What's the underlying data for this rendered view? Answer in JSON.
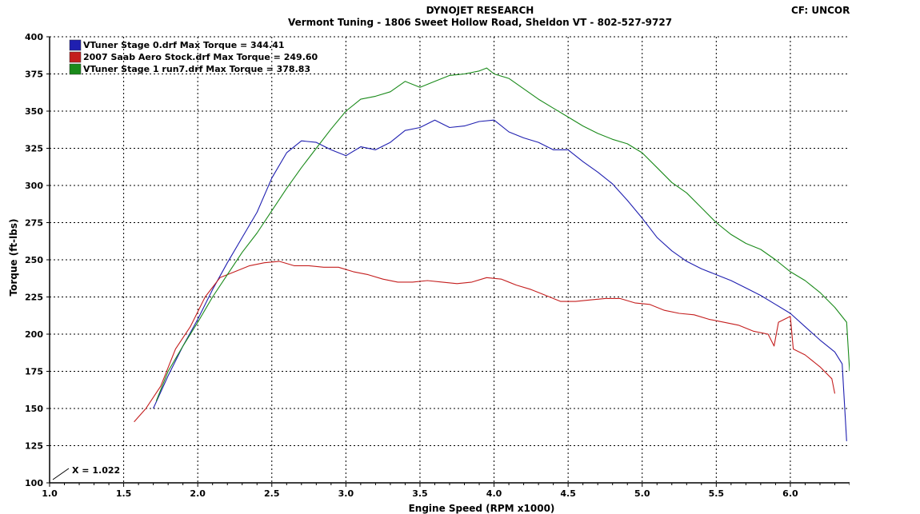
{
  "header": {
    "title": "DYNOJET RESEARCH",
    "subtitle": "Vermont Tuning - 1806 Sweet Hollow Road, Sheldon VT - 802-527-9727",
    "correction": "CF: UNCORR"
  },
  "cursor_readout": "X = 1.022",
  "chart_data": {
    "type": "line",
    "title": "DYNOJET RESEARCH",
    "xlabel": "Engine Speed (RPM x1000)",
    "ylabel": "Torque (ft-lbs)",
    "xlim": [
      1.0,
      6.4
    ],
    "ylim": [
      100,
      400
    ],
    "x_ticks": [
      "1.0",
      "1.5",
      "2.0",
      "2.5",
      "3.0",
      "3.5",
      "4.0",
      "4.5",
      "5.0",
      "5.5",
      "6.0"
    ],
    "y_ticks": [
      "100",
      "125",
      "150",
      "175",
      "200",
      "225",
      "250",
      "275",
      "300",
      "325",
      "350",
      "375",
      "400"
    ],
    "grid": true,
    "legend_position": "top-left",
    "series": [
      {
        "name": "VTuner Stage 0.drf Max Torque = 344.41",
        "color": "#1f1fb0",
        "x": [
          1.7,
          1.8,
          1.9,
          2.0,
          2.1,
          2.2,
          2.3,
          2.4,
          2.5,
          2.6,
          2.7,
          2.8,
          2.9,
          3.0,
          3.1,
          3.2,
          3.3,
          3.4,
          3.5,
          3.6,
          3.7,
          3.8,
          3.9,
          4.0,
          4.1,
          4.2,
          4.3,
          4.4,
          4.5,
          4.6,
          4.7,
          4.8,
          4.9,
          5.0,
          5.1,
          5.2,
          5.3,
          5.4,
          5.5,
          5.6,
          5.7,
          5.8,
          5.9,
          6.0,
          6.1,
          6.2,
          6.3,
          6.35,
          6.38
        ],
        "y": [
          150,
          172,
          192,
          210,
          230,
          248,
          265,
          282,
          305,
          322,
          330,
          329,
          324,
          320,
          326,
          324,
          329,
          337,
          339,
          344,
          339,
          340,
          343,
          344,
          336,
          332,
          329,
          324,
          324,
          316,
          309,
          301,
          290,
          278,
          265,
          256,
          249,
          244,
          240,
          236,
          231,
          226,
          220,
          214,
          205,
          196,
          188,
          180,
          128
        ]
      },
      {
        "name": "2007 Saab Aero Stock.drf Max Torque = 249.60",
        "color": "#c41e1e",
        "x": [
          1.57,
          1.65,
          1.75,
          1.85,
          1.95,
          2.05,
          2.15,
          2.25,
          2.35,
          2.45,
          2.55,
          2.65,
          2.75,
          2.85,
          2.95,
          3.05,
          3.15,
          3.25,
          3.35,
          3.45,
          3.55,
          3.65,
          3.75,
          3.85,
          3.95,
          4.05,
          4.15,
          4.25,
          4.35,
          4.45,
          4.55,
          4.65,
          4.75,
          4.85,
          4.95,
          5.05,
          5.15,
          5.25,
          5.35,
          5.45,
          5.55,
          5.65,
          5.75,
          5.85,
          5.89,
          5.92,
          6.0,
          6.02,
          6.1,
          6.2,
          6.28,
          6.3
        ],
        "y": [
          141,
          150,
          165,
          190,
          205,
          225,
          238,
          242,
          246,
          248,
          249,
          246,
          246,
          245,
          245,
          242,
          240,
          237,
          235,
          235,
          236,
          235,
          234,
          235,
          238,
          237,
          233,
          230,
          226,
          222,
          222,
          223,
          224,
          224,
          221,
          220,
          216,
          214,
          213,
          210,
          208,
          206,
          202,
          200,
          192,
          208,
          212,
          190,
          186,
          178,
          170,
          160
        ]
      },
      {
        "name": "VTuner Stage 1 run7.drf Max Torque = 378.83",
        "color": "#1a8a1a",
        "x": [
          1.72,
          1.8,
          1.9,
          2.0,
          2.1,
          2.2,
          2.3,
          2.4,
          2.5,
          2.6,
          2.7,
          2.8,
          2.9,
          3.0,
          3.1,
          3.2,
          3.3,
          3.4,
          3.5,
          3.6,
          3.7,
          3.8,
          3.9,
          3.95,
          4.0,
          4.1,
          4.2,
          4.3,
          4.4,
          4.5,
          4.6,
          4.7,
          4.8,
          4.9,
          5.0,
          5.1,
          5.2,
          5.3,
          5.4,
          5.5,
          5.6,
          5.7,
          5.8,
          5.9,
          6.0,
          6.1,
          6.2,
          6.3,
          6.38,
          6.4
        ],
        "y": [
          155,
          175,
          192,
          208,
          225,
          240,
          255,
          268,
          283,
          298,
          312,
          325,
          338,
          350,
          358,
          360,
          363,
          370,
          366,
          370,
          374,
          375,
          377,
          379,
          375,
          372,
          365,
          358,
          352,
          346,
          340,
          335,
          331,
          328,
          322,
          312,
          302,
          295,
          285,
          275,
          267,
          261,
          257,
          250,
          242,
          236,
          228,
          218,
          208,
          175
        ]
      }
    ]
  }
}
